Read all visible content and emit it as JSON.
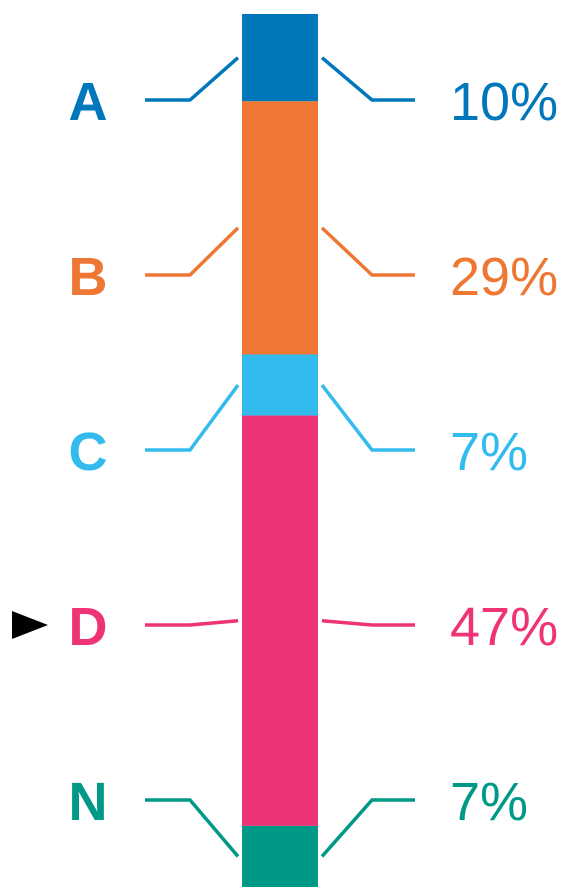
{
  "chart_data": {
    "type": "stacked-bar",
    "categories": [
      "A",
      "B",
      "C",
      "D",
      "N"
    ],
    "values": [
      10,
      29,
      7,
      47,
      7
    ],
    "value_labels": [
      "10%",
      "29%",
      "7%",
      "47%",
      "7%"
    ],
    "colors": [
      "#0077bb",
      "#ee7733",
      "#33bbee",
      "#ee3377",
      "#009988"
    ],
    "selected": "D"
  }
}
